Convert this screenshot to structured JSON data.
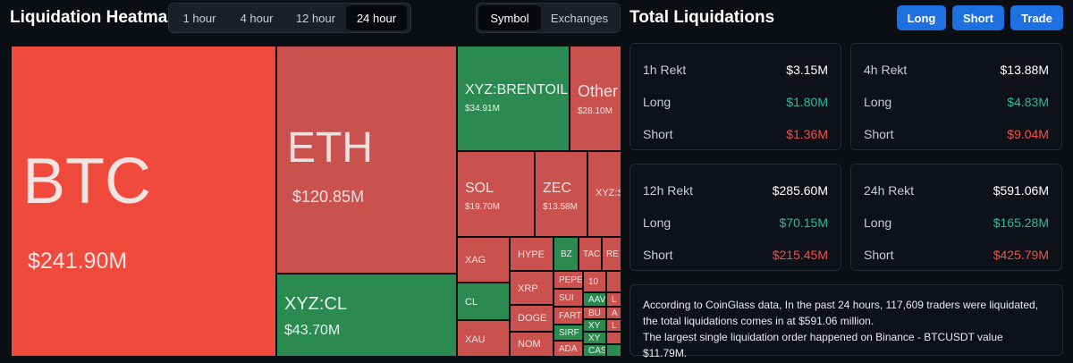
{
  "header": {
    "title": "Liquidation Heatmap",
    "time_tabs": [
      {
        "label": "1 hour",
        "active": false
      },
      {
        "label": "4 hour",
        "active": false
      },
      {
        "label": "12 hour",
        "active": false
      },
      {
        "label": "24 hour",
        "active": true
      }
    ],
    "view_tabs": [
      {
        "label": "Symbol",
        "active": true
      },
      {
        "label": "Exchanges",
        "active": false
      }
    ]
  },
  "totals": {
    "title": "Total Liquidations",
    "buttons": {
      "long": "Long",
      "short": "Short",
      "trade": "Trade"
    },
    "cards": [
      {
        "title": "1h Rekt",
        "total": "$3.15M",
        "long_label": "Long",
        "long": "$1.80M",
        "short_label": "Short",
        "short": "$1.36M"
      },
      {
        "title": "4h Rekt",
        "total": "$13.88M",
        "long_label": "Long",
        "long": "$4.83M",
        "short_label": "Short",
        "short": "$9.04M"
      },
      {
        "title": "12h Rekt",
        "total": "$285.60M",
        "long_label": "Long",
        "long": "$70.15M",
        "short_label": "Short",
        "short": "$215.45M"
      },
      {
        "title": "24h Rekt",
        "total": "$591.06M",
        "long_label": "Long",
        "long": "$165.28M",
        "short_label": "Short",
        "short": "$425.79M"
      }
    ],
    "info_line1": "According to CoinGlass data, In the past 24 hours, 117,609 traders were liquidated, the total liquidations comes in at $591.06 million.",
    "info_line2": "The largest single liquidation order happened on Binance - BTCUSDT value $11.79M."
  },
  "colors": {
    "long": "#2eb8a6",
    "short": "#f0504a",
    "accent": "#1e6fe0",
    "tile_red": "#c9524e",
    "tile_green": "#2b8a50",
    "tile_btc": "#f04a3d"
  },
  "heatmap": {
    "tiles": [
      {
        "name": "BTC",
        "value": "$241.90M"
      },
      {
        "name": "ETH",
        "value": "$120.85M"
      },
      {
        "name": "XYZ:CL",
        "value": "$43.70M"
      },
      {
        "name": "XYZ:BRENTOIL",
        "value": "$34.91M"
      },
      {
        "name": "Other",
        "value": "$28.10M"
      },
      {
        "name": "SOL",
        "value": "$19.70M"
      },
      {
        "name": "ZEC",
        "value": "$13.58M"
      },
      {
        "name": "XYZ:S",
        "value": ""
      },
      {
        "name": "XAG"
      },
      {
        "name": "HYPE"
      },
      {
        "name": "BZ"
      },
      {
        "name": "TAC"
      },
      {
        "name": "RE"
      },
      {
        "name": "CL"
      },
      {
        "name": "XRP"
      },
      {
        "name": "PEPE"
      },
      {
        "name": "SUI"
      },
      {
        "name": "FART"
      },
      {
        "name": "SIRF"
      },
      {
        "name": "ADA"
      },
      {
        "name": "DOGE"
      },
      {
        "name": "NOM"
      },
      {
        "name": "XAU"
      },
      {
        "name": "10"
      },
      {
        "name": "AAV"
      },
      {
        "name": "BU"
      },
      {
        "name": "XY"
      },
      {
        "name": "XY"
      },
      {
        "name": "CAS"
      },
      {
        "name": "L"
      },
      {
        "name": "A"
      },
      {
        "name": "L"
      }
    ]
  }
}
